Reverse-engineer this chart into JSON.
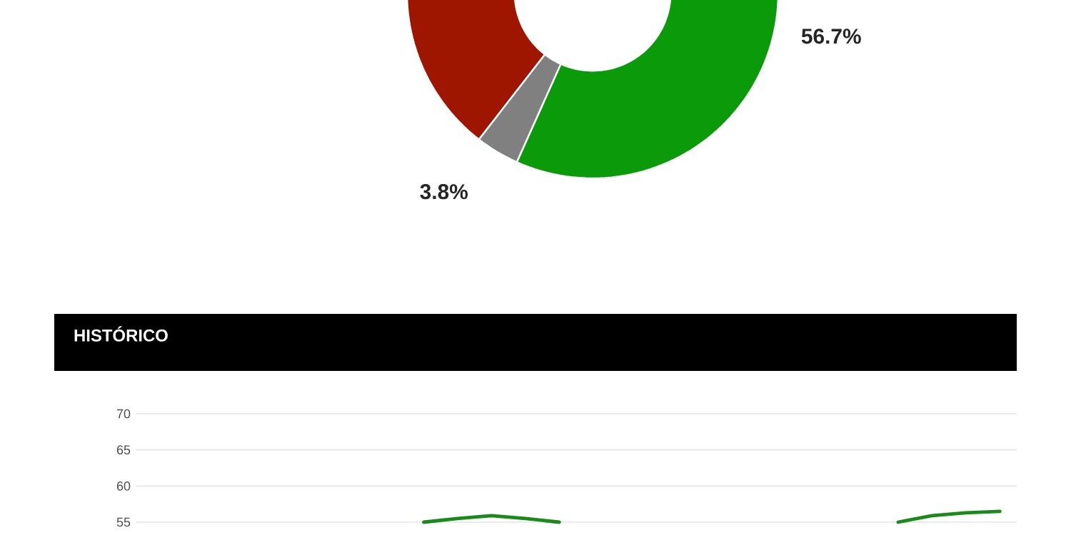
{
  "chart_data": [
    {
      "type": "donut",
      "categories": [
        null,
        null,
        null
      ],
      "values": [
        56.7,
        3.8,
        39.5
      ],
      "colors": [
        "#0a9a0a",
        "#808080",
        "#9e1500"
      ],
      "value_labels": [
        "56.7%",
        "3.8%",
        null
      ]
    },
    {
      "type": "line",
      "title": "HISTÓRICO",
      "categories": [
        null,
        null,
        null,
        null,
        null,
        null,
        null,
        null,
        null,
        null,
        null,
        null,
        null,
        null,
        null,
        null,
        null,
        null,
        null,
        null,
        null,
        null,
        null,
        null,
        null,
        null
      ],
      "series": [
        {
          "color": "#1a8a1a",
          "values": [
            null,
            null,
            null,
            null,
            null,
            null,
            null,
            null,
            55.0,
            55.5,
            55.9,
            55.5,
            55.0,
            null,
            null,
            null,
            null,
            null,
            null,
            null,
            null,
            null,
            55.0,
            55.9,
            56.3,
            56.5
          ]
        }
      ],
      "ylim": [
        55,
        70
      ],
      "yticks": [
        55,
        60,
        65,
        70
      ],
      "grid": "y",
      "tick_labels": "y"
    }
  ]
}
